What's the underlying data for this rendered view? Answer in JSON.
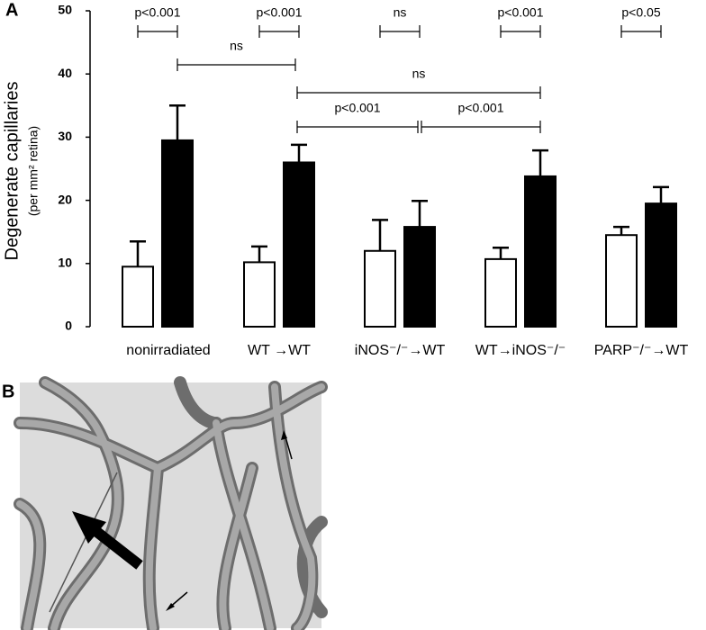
{
  "chart_data": {
    "type": "bar",
    "panel_labels": [
      "A",
      "B"
    ],
    "ylabel": "Degenerate capillaries",
    "ylabel_sub": "(per mm² retina)",
    "categories": [
      "nonirradiated",
      "WT →WT",
      "iNOS⁻/⁻→WT",
      "WT→iNOS⁻/⁻",
      "PARP⁻/⁻→WT"
    ],
    "series": [
      {
        "color": "#ffffff",
        "values": [
          9.5,
          10.2,
          12,
          10.7,
          14.5
        ],
        "errors": [
          4,
          2.5,
          4.9,
          1.8,
          1.3
        ]
      },
      {
        "color": "#000000",
        "values": [
          29.5,
          26,
          15.8,
          23.8,
          19.5
        ],
        "errors": [
          5.5,
          2.8,
          4.1,
          4.1,
          2.6
        ]
      }
    ],
    "ylim": [
      0,
      50
    ],
    "yticks": [
      0,
      10,
      20,
      30,
      40,
      50
    ],
    "annotations": [
      "p<0.001",
      "p<0.001",
      "ns",
      "p<0.001",
      "p<0.05",
      "ns",
      "ns",
      "p<0.001",
      "p<0.001"
    ]
  }
}
